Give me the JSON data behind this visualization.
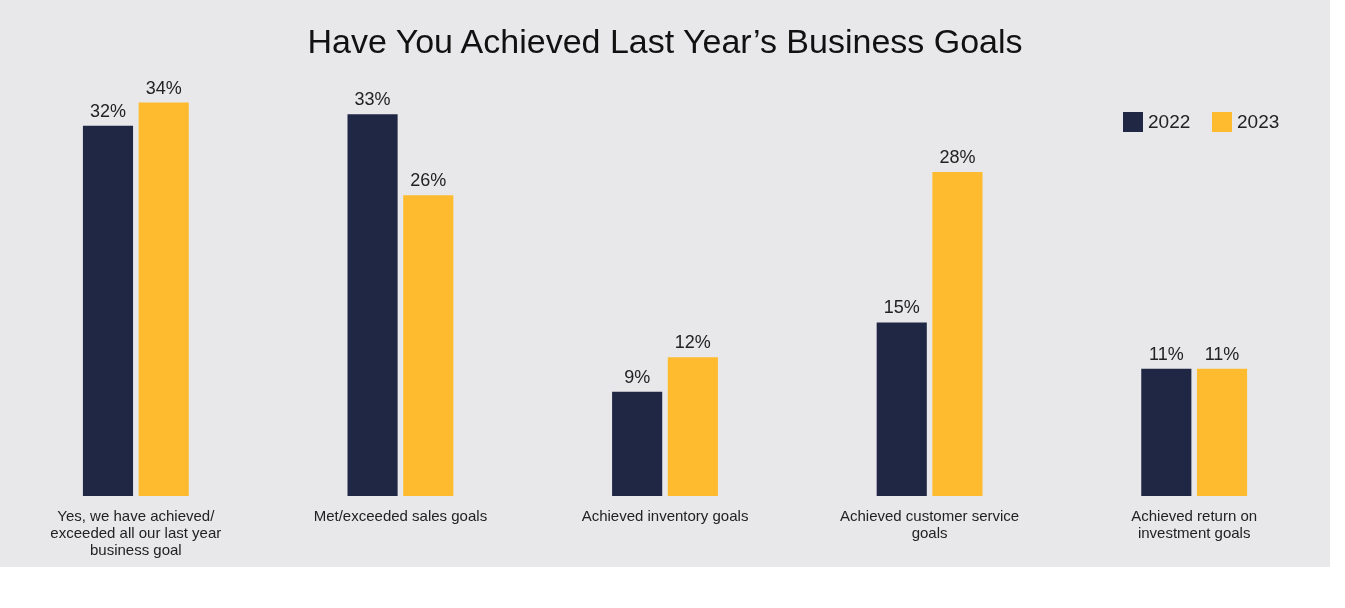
{
  "chart_data": {
    "type": "bar",
    "title": "Have You Achieved Last Year’s Business Goals",
    "categories": [
      "Yes, we have achieved/ exceeded all our last year business goal",
      "Met/exceeded sales goals",
      "Achieved inventory goals",
      "Achieved customer service goals",
      "Achieved return on investment goals"
    ],
    "series": [
      {
        "name": "2022",
        "color": "#1f2744",
        "values": [
          32,
          33,
          9,
          15,
          11
        ],
        "value_labels": [
          "32%",
          "33%",
          "9%",
          "15%",
          "11%"
        ]
      },
      {
        "name": "2023",
        "color": "#ffbb2f",
        "values": [
          34,
          26,
          12,
          28,
          11
        ],
        "value_labels": [
          "34%",
          "26%",
          "12%",
          "28%",
          "11%"
        ]
      }
    ],
    "legend": "top right",
    "grid": false
  }
}
